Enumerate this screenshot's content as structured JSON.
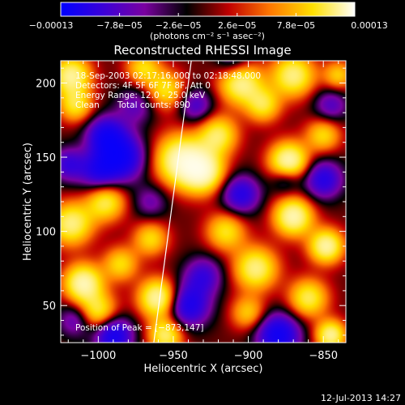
{
  "colors": {
    "background": "#000000",
    "foreground": "#ffffff",
    "limb_line": "#ffffff",
    "colormap_stops": [
      "#0000ff",
      "#3a00d8",
      "#7a00a0",
      "#000000",
      "#c00000",
      "#ff7a00",
      "#ffe000",
      "#ffffff"
    ]
  },
  "colorbar": {
    "tick_labels": [
      "−0.00013",
      "−7.8e−05",
      "−2.6e−05",
      "2.6e−05",
      "7.8e−05",
      "0.00013"
    ],
    "units_label": "(photons cm⁻² s⁻¹ asec⁻²)",
    "range": [
      -0.00013,
      0.00013
    ]
  },
  "chart_data": {
    "type": "heatmap",
    "title": "Reconstructed RHESSI Image",
    "xlabel": "Heliocentric X (arcsec)",
    "ylabel": "Heliocentric Y (arcsec)",
    "xlim": [
      -1025,
      -835
    ],
    "ylim": [
      25,
      215
    ],
    "x_ticks": [
      -1000,
      -950,
      -900,
      -850
    ],
    "x_tick_labels": [
      "−1000",
      "−950",
      "−900",
      "−850"
    ],
    "y_ticks": [
      50,
      100,
      150,
      200
    ],
    "y_tick_labels": [
      "50",
      "100",
      "150",
      "200"
    ],
    "limb_line": [
      [
        -963,
        25
      ],
      [
        -938,
        215
      ]
    ],
    "blobs": [
      {
        "x": -873,
        "y": 147,
        "a": 1.0,
        "s": 9
      },
      {
        "x": -945,
        "y": 148,
        "a": 0.95,
        "s": 12
      },
      {
        "x": -930,
        "y": 140,
        "a": 0.9,
        "s": 10
      },
      {
        "x": -920,
        "y": 165,
        "a": 0.7,
        "s": 9
      },
      {
        "x": -905,
        "y": 200,
        "a": 0.85,
        "s": 10
      },
      {
        "x": -870,
        "y": 205,
        "a": 0.8,
        "s": 10
      },
      {
        "x": -890,
        "y": 185,
        "a": 0.6,
        "s": 8
      },
      {
        "x": -955,
        "y": 195,
        "a": 0.6,
        "s": 9
      },
      {
        "x": -970,
        "y": 210,
        "a": 0.55,
        "s": 8
      },
      {
        "x": -1018,
        "y": 205,
        "a": 0.85,
        "s": 9
      },
      {
        "x": -1015,
        "y": 185,
        "a": 0.6,
        "s": 8
      },
      {
        "x": -995,
        "y": 120,
        "a": 0.7,
        "s": 9
      },
      {
        "x": -1018,
        "y": 105,
        "a": 0.8,
        "s": 10
      },
      {
        "x": -1010,
        "y": 65,
        "a": 0.95,
        "s": 9
      },
      {
        "x": -1000,
        "y": 45,
        "a": 0.7,
        "s": 9
      },
      {
        "x": -985,
        "y": 78,
        "a": 0.55,
        "s": 8
      },
      {
        "x": -960,
        "y": 55,
        "a": 0.95,
        "s": 9
      },
      {
        "x": -955,
        "y": 30,
        "a": 0.75,
        "s": 8
      },
      {
        "x": -965,
        "y": 95,
        "a": 0.55,
        "s": 8
      },
      {
        "x": -915,
        "y": 100,
        "a": 0.6,
        "s": 9
      },
      {
        "x": -895,
        "y": 75,
        "a": 0.8,
        "s": 10
      },
      {
        "x": -900,
        "y": 45,
        "a": 0.5,
        "s": 8
      },
      {
        "x": -870,
        "y": 110,
        "a": 0.95,
        "s": 9
      },
      {
        "x": -848,
        "y": 90,
        "a": 0.9,
        "s": 8
      },
      {
        "x": -860,
        "y": 55,
        "a": 0.7,
        "s": 9
      },
      {
        "x": -845,
        "y": 30,
        "a": 0.85,
        "s": 7
      },
      {
        "x": -850,
        "y": 165,
        "a": 0.55,
        "s": 8
      },
      {
        "x": -840,
        "y": 205,
        "a": 0.5,
        "s": 7
      },
      {
        "x": -985,
        "y": 150,
        "a": -0.95,
        "s": 11
      },
      {
        "x": -995,
        "y": 165,
        "a": -0.75,
        "s": 9
      },
      {
        "x": -1000,
        "y": 140,
        "a": -0.6,
        "s": 9
      },
      {
        "x": -975,
        "y": 185,
        "a": -0.4,
        "s": 9
      },
      {
        "x": -990,
        "y": 30,
        "a": -0.9,
        "s": 9
      },
      {
        "x": -940,
        "y": 50,
        "a": -0.8,
        "s": 10
      },
      {
        "x": -930,
        "y": 70,
        "a": -0.55,
        "s": 9
      },
      {
        "x": -905,
        "y": 125,
        "a": -0.7,
        "s": 9
      },
      {
        "x": -910,
        "y": 215,
        "a": -0.4,
        "s": 8
      },
      {
        "x": -880,
        "y": 30,
        "a": -0.95,
        "s": 10
      },
      {
        "x": -875,
        "y": 135,
        "a": -0.4,
        "s": 7
      },
      {
        "x": -850,
        "y": 135,
        "a": -0.7,
        "s": 9
      },
      {
        "x": -845,
        "y": 185,
        "a": -0.45,
        "s": 8
      },
      {
        "x": -1020,
        "y": 145,
        "a": -0.55,
        "s": 8
      },
      {
        "x": -1015,
        "y": 40,
        "a": -0.45,
        "s": 8
      },
      {
        "x": -935,
        "y": 185,
        "a": -0.5,
        "s": 8
      },
      {
        "x": -965,
        "y": 120,
        "a": -0.35,
        "s": 8
      }
    ]
  },
  "overlay": {
    "line1": "18-Sep-2003 02:17:16.000 to 02:18:48.000",
    "line2": "Detectors: 4F 5F 6F 7F 8F, Att 0",
    "line3": "Energy Range: 12.0 - 25.0 keV",
    "line4_method": "Clean",
    "line4_counts": "Total counts: 890",
    "peak_label": "Position of Peak = [−873,147]"
  },
  "footer": {
    "timestamp": "12-Jul-2013 14:27"
  }
}
